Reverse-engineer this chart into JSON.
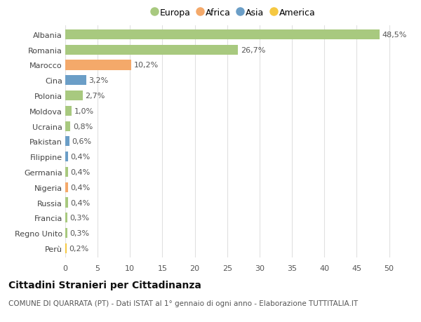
{
  "countries": [
    "Albania",
    "Romania",
    "Marocco",
    "Cina",
    "Polonia",
    "Moldova",
    "Ucraina",
    "Pakistan",
    "Filippine",
    "Germania",
    "Nigeria",
    "Russia",
    "Francia",
    "Regno Unito",
    "Perù"
  ],
  "values": [
    48.5,
    26.7,
    10.2,
    3.2,
    2.7,
    1.0,
    0.8,
    0.6,
    0.4,
    0.4,
    0.4,
    0.4,
    0.3,
    0.3,
    0.2
  ],
  "labels": [
    "48,5%",
    "26,7%",
    "10,2%",
    "3,2%",
    "2,7%",
    "1,0%",
    "0,8%",
    "0,6%",
    "0,4%",
    "0,4%",
    "0,4%",
    "0,4%",
    "0,3%",
    "0,3%",
    "0,2%"
  ],
  "continents": [
    "Europa",
    "Europa",
    "Africa",
    "Asia",
    "Europa",
    "Europa",
    "Europa",
    "Asia",
    "Asia",
    "Europa",
    "Africa",
    "Europa",
    "Europa",
    "Europa",
    "America"
  ],
  "continent_colors": {
    "Europa": "#a8c97f",
    "Africa": "#f4a96a",
    "Asia": "#6b9ec7",
    "America": "#f5c842"
  },
  "legend_order": [
    "Europa",
    "Africa",
    "Asia",
    "America"
  ],
  "xlim": [
    0,
    52
  ],
  "xticks": [
    0,
    5,
    10,
    15,
    20,
    25,
    30,
    35,
    40,
    45,
    50
  ],
  "title": "Cittadini Stranieri per Cittadinanza",
  "subtitle": "COMUNE DI QUARRATA (PT) - Dati ISTAT al 1° gennaio di ogni anno - Elaborazione TUTTITALIA.IT",
  "background_color": "#ffffff",
  "bar_height": 0.65,
  "grid_color": "#e0e0e0",
  "label_fontsize": 8,
  "tick_fontsize": 8,
  "title_fontsize": 10,
  "subtitle_fontsize": 7.5
}
